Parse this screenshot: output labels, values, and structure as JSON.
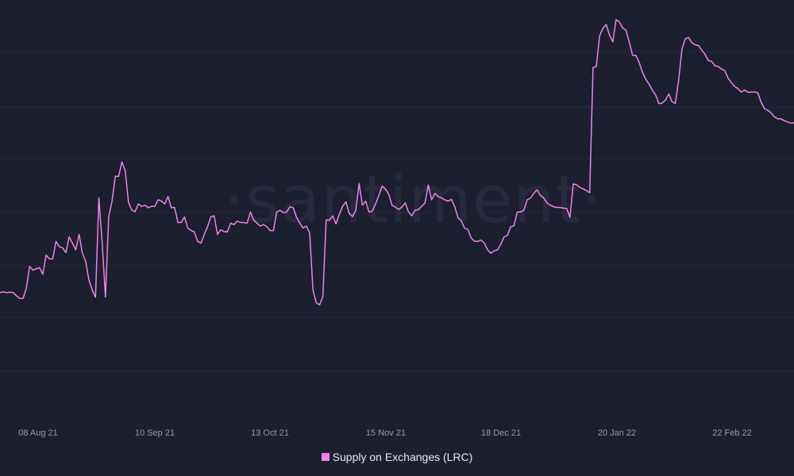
{
  "watermark": "·santiment·",
  "chart_data": {
    "type": "line",
    "x_ticks": [
      "08 Aug 21",
      "10 Sep 21",
      "13 Oct 21",
      "15 Nov 21",
      "18 Dec 21",
      "20 Jan 22",
      "22 Feb 22"
    ],
    "series": [
      {
        "name": "Supply on Exchanges (LRC)",
        "color": "#ee82ee",
        "values": [
          36.5,
          36.7,
          36.5,
          36.6,
          36.5,
          35.6,
          34.8,
          34.8,
          37.8,
          44.0,
          42.9,
          43.3,
          43.6,
          41.7,
          47.2,
          46.1,
          46.1,
          51.1,
          49.6,
          49.3,
          47.9,
          52.4,
          50.6,
          48.7,
          53.1,
          47.8,
          45.4,
          40.1,
          37.2,
          35.2,
          63.5,
          51.0,
          35.2,
          58.1,
          62.6,
          69.7,
          69.7,
          73.8,
          71.3,
          62.3,
          60.0,
          59.6,
          61.8,
          61.1,
          61.4,
          60.7,
          61.1,
          61.1,
          63.0,
          62.6,
          61.8,
          63.9,
          60.7,
          60.8,
          56.5,
          56.5,
          58.1,
          54.9,
          54.2,
          53.8,
          51.1,
          50.6,
          53.1,
          55.3,
          58.1,
          58.4,
          53.1,
          54.4,
          53.9,
          53.8,
          56.3,
          55.9,
          56.9,
          56.5,
          56.5,
          56.3,
          59.5,
          57.2,
          56.3,
          55.5,
          55.9,
          55.3,
          54.2,
          54.2,
          59.5,
          60.0,
          59.3,
          59.5,
          61.0,
          60.7,
          58.0,
          56.3,
          54.9,
          55.5,
          53.5,
          37.2,
          33.6,
          33.0,
          35.3,
          57.2,
          57.2,
          58.4,
          56.1,
          58.9,
          61.1,
          62.4,
          59.1,
          58.2,
          60.0,
          67.6,
          61.4,
          62.6,
          59.5,
          59.7,
          61.8,
          64.3,
          66.9,
          66.0,
          64.6,
          61.4,
          60.9,
          60.2,
          60.9,
          62.1,
          59.5,
          58.4,
          60.0,
          60.2,
          61.1,
          62.1,
          67.2,
          63.0,
          64.8,
          63.9,
          63.5,
          63.0,
          62.6,
          63.1,
          61.1,
          57.9,
          57.0,
          54.9,
          54.5,
          52.1,
          51.1,
          51.1,
          51.5,
          50.6,
          48.7,
          47.7,
          48.4,
          48.7,
          50.3,
          52.4,
          52.8,
          55.3,
          55.6,
          59.5,
          59.5,
          60.0,
          63.0,
          63.4,
          64.8,
          65.8,
          64.3,
          63.5,
          62.1,
          61.5,
          61.0,
          60.8,
          60.8,
          60.6,
          60.5,
          58.0,
          67.5,
          67.3,
          66.5,
          66.1,
          65.6,
          65.0,
          100.7,
          101.0,
          109.8,
          111.9,
          113.0,
          110.0,
          108.1,
          114.4,
          113.7,
          112.0,
          111.4,
          108.0,
          104.2,
          104.2,
          102.2,
          99.4,
          97.4,
          96.0,
          94.2,
          92.9,
          90.4,
          90.6,
          91.5,
          93.2,
          90.9,
          90.5,
          97.3,
          106.0,
          108.9,
          109.3,
          107.8,
          107.2,
          107.0,
          105.7,
          104.5,
          102.7,
          102.5,
          101.2,
          101.0,
          100.3,
          99.8,
          97.7,
          96.4,
          95.3,
          94.7,
          93.7,
          94.3,
          93.7,
          93.7,
          93.8,
          93.5,
          90.9,
          89.0,
          88.6,
          87.8,
          86.7,
          86.1,
          86.1,
          85.6,
          85.2,
          84.9,
          84.9
        ]
      }
    ],
    "grid": true,
    "legend": "bottom-center"
  }
}
